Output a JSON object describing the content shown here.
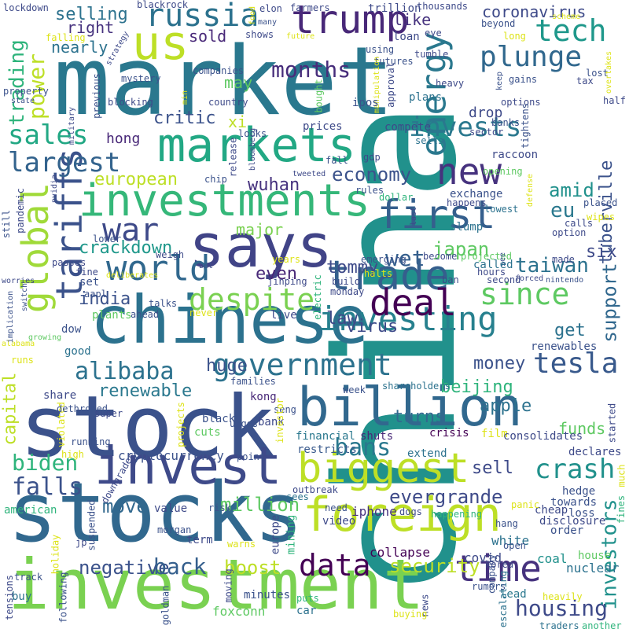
{
  "words": [
    {
      "text": "china",
      "color": "#21918c"
    },
    {
      "text": "market",
      "color": "#2a788e"
    },
    {
      "text": "stock",
      "color": "#3b528b"
    },
    {
      "text": "investment",
      "color": "#7ad151"
    },
    {
      "text": "stocks",
      "color": "#31688e"
    },
    {
      "text": "chinese",
      "color": "#2c728e"
    },
    {
      "text": "markets",
      "color": "#22a884"
    },
    {
      "text": "invest",
      "color": "#3e4a89"
    },
    {
      "text": "investments",
      "color": "#35b779"
    },
    {
      "text": "says",
      "color": "#414487"
    },
    {
      "text": "billion",
      "color": "#31688e"
    },
    {
      "text": "trump",
      "color": "#482878"
    },
    {
      "text": "us",
      "color": "#bddf26"
    },
    {
      "text": "foreign",
      "color": "#bddf26"
    },
    {
      "text": "biggest",
      "color": "#bddf26"
    },
    {
      "text": "global",
      "color": "#a0da39"
    },
    {
      "text": "trade",
      "color": "#355f8d"
    },
    {
      "text": "government",
      "color": "#2c728e"
    },
    {
      "text": "investing",
      "color": "#27808e"
    },
    {
      "text": "deal",
      "color": "#440154"
    },
    {
      "text": "time",
      "color": "#46327e"
    },
    {
      "text": "data",
      "color": "#440154"
    },
    {
      "text": "first",
      "color": "#355f8d"
    },
    {
      "text": "new",
      "color": "#46327e"
    },
    {
      "text": "energy",
      "color": "#2a788e"
    },
    {
      "text": "tariffs",
      "color": "#3b528b"
    },
    {
      "text": "world",
      "color": "#31688e"
    },
    {
      "text": "russia",
      "color": "#2c728e"
    },
    {
      "text": "plunge",
      "color": "#31688e"
    },
    {
      "text": "tech",
      "color": "#1f988b"
    },
    {
      "text": "despite",
      "color": "#7ad151"
    },
    {
      "text": "since",
      "color": "#5ec962"
    },
    {
      "text": "crash",
      "color": "#21918c"
    },
    {
      "text": "tesla",
      "color": "#38598c"
    },
    {
      "text": "housing",
      "color": "#3e4a89"
    },
    {
      "text": "alibaba",
      "color": "#2c728e"
    },
    {
      "text": "largest",
      "color": "#33638d"
    },
    {
      "text": "sales",
      "color": "#22a884"
    },
    {
      "text": "invests",
      "color": "#2a788e"
    },
    {
      "text": "coronavirus",
      "color": "#3e4a89"
    },
    {
      "text": "months",
      "color": "#472d7b"
    },
    {
      "text": "selling",
      "color": "#2c728e"
    },
    {
      "text": "power",
      "color": "#bddf26"
    },
    {
      "text": "trading",
      "color": "#2fb47c"
    },
    {
      "text": "war",
      "color": "#3e4a89"
    },
    {
      "text": "wet",
      "color": "#355f8d"
    },
    {
      "text": "economy",
      "color": "#3b528b"
    },
    {
      "text": "taiwan",
      "color": "#2c728e"
    },
    {
      "text": "bans",
      "color": "#2a788e"
    },
    {
      "text": "biden",
      "color": "#2fb47c"
    },
    {
      "text": "falls",
      "color": "#3b528b"
    },
    {
      "text": "evergrande",
      "color": "#3e4a89"
    },
    {
      "text": "security",
      "color": "#bddf26"
    },
    {
      "text": "negative",
      "color": "#3b528b"
    },
    {
      "text": "back",
      "color": "#355f8d"
    },
    {
      "text": "million",
      "color": "#5ec962"
    },
    {
      "text": "move",
      "color": "#31688e"
    },
    {
      "text": "boost",
      "color": "#bddf26"
    },
    {
      "text": "investors",
      "color": "#21918c"
    },
    {
      "text": "support",
      "color": "#31688e"
    },
    {
      "text": "european",
      "color": "#bddf26"
    },
    {
      "text": "amid",
      "color": "#21918c"
    },
    {
      "text": "eu",
      "color": "#2a788e"
    },
    {
      "text": "japan",
      "color": "#5ec962"
    },
    {
      "text": "six",
      "color": "#3e4a89"
    },
    {
      "text": "wuhan",
      "color": "#46327e"
    },
    {
      "text": "crackdown",
      "color": "#1f988b"
    },
    {
      "text": "tommy",
      "color": "#3e4a89"
    },
    {
      "text": "even",
      "color": "#482878"
    },
    {
      "text": "india",
      "color": "#3b528b"
    },
    {
      "text": "law",
      "color": "#3e4a89"
    },
    {
      "text": "virus",
      "color": "#3e4a89"
    },
    {
      "text": "beijing",
      "color": "#2fb47c"
    },
    {
      "text": "apple",
      "color": "#2c728e"
    },
    {
      "text": "funds",
      "color": "#5ec962"
    },
    {
      "text": "get",
      "color": "#2c728e"
    },
    {
      "text": "renewable",
      "color": "#2a788e"
    },
    {
      "text": "huge",
      "color": "#3b528b"
    },
    {
      "text": "money",
      "color": "#3b528b"
    },
    {
      "text": "turns",
      "color": "#31688e"
    },
    {
      "text": "sell",
      "color": "#3e4a89"
    },
    {
      "text": "critic",
      "color": "#3b528b"
    },
    {
      "text": "hong",
      "color": "#482878"
    },
    {
      "text": "xi",
      "color": "#bddf26"
    },
    {
      "text": "may",
      "color": "#5ec962"
    },
    {
      "text": "drop",
      "color": "#3e4a89"
    },
    {
      "text": "like",
      "color": "#46327e"
    },
    {
      "text": "right",
      "color": "#46327e"
    },
    {
      "text": "nearly",
      "color": "#2c728e"
    },
    {
      "text": "sold",
      "color": "#482878"
    },
    {
      "text": "major",
      "color": "#7ad151"
    },
    {
      "text": "cryptocurrency",
      "color": "#3b528b"
    },
    {
      "text": "capital",
      "color": "#bddf26"
    },
    {
      "text": "tuberville",
      "color": "#3b528b"
    },
    {
      "text": "american",
      "color": "#2fb47c"
    },
    {
      "text": "iphone",
      "color": "#46327e"
    },
    {
      "text": "covid",
      "color": "#3e4a89"
    },
    {
      "text": "collapse",
      "color": "#440154"
    },
    {
      "text": "coal",
      "color": "#21918c"
    },
    {
      "text": "nuclear",
      "color": "#2c728e"
    },
    {
      "text": "house",
      "color": "#5ec962"
    },
    {
      "text": "white",
      "color": "#2c728e"
    },
    {
      "text": "europe",
      "color": "#3e4a89"
    },
    {
      "text": "mining",
      "color": "#2fb47c"
    },
    {
      "text": "film",
      "color": "#dde318"
    },
    {
      "text": "crisis",
      "color": "#440154"
    },
    {
      "text": "shuts",
      "color": "#482878"
    },
    {
      "text": "extend",
      "color": "#2c728e"
    },
    {
      "text": "financial",
      "color": "#2a788e"
    },
    {
      "text": "restricts",
      "color": "#38598c"
    },
    {
      "text": "consolidates",
      "color": "#3e4a89"
    },
    {
      "text": "declares",
      "color": "#3e4a89"
    },
    {
      "text": "started",
      "color": "#3e4a89"
    },
    {
      "text": "hedge",
      "color": "#3b528b"
    },
    {
      "text": "towards",
      "color": "#3b528b"
    },
    {
      "text": "cheap",
      "color": "#3e4a89"
    },
    {
      "text": "loss",
      "color": "#3b528b"
    },
    {
      "text": "disclosure",
      "color": "#3e4a89"
    },
    {
      "text": "order",
      "color": "#3b528b"
    },
    {
      "text": "panic",
      "color": "#dde318"
    },
    {
      "text": "hang",
      "color": "#3b528b"
    },
    {
      "text": "open",
      "color": "#3b528b"
    },
    {
      "text": "much",
      "color": "#dde318"
    },
    {
      "text": "fines",
      "color": "#2fb47c"
    },
    {
      "text": "renewables",
      "color": "#3b528b"
    },
    {
      "text": "escalating",
      "color": "#2c728e"
    },
    {
      "text": "company",
      "color": "#3b528b"
    },
    {
      "text": "lead",
      "color": "#2a788e"
    },
    {
      "text": "heavily",
      "color": "#dde318"
    },
    {
      "text": "traders",
      "color": "#2c728e"
    },
    {
      "text": "another",
      "color": "#2fb47c"
    },
    {
      "text": "news",
      "color": "#3e4a89"
    },
    {
      "text": "buying",
      "color": "#dde318"
    },
    {
      "text": "puts",
      "color": "#2fb47c"
    },
    {
      "text": "car",
      "color": "#2c728e"
    },
    {
      "text": "minutes",
      "color": "#3b528b"
    },
    {
      "text": "foxconn",
      "color": "#5ec962"
    },
    {
      "text": "goldman",
      "color": "#3b528b"
    },
    {
      "text": "moving",
      "color": "#3e4a89"
    },
    {
      "text": "rumors",
      "color": "#3b528b"
    },
    {
      "text": "korea",
      "color": "#3e4a89"
    },
    {
      "text": "warns",
      "color": "#dde318"
    },
    {
      "text": "term",
      "color": "#3e4a89"
    },
    {
      "text": "morgan",
      "color": "#3b528b"
    },
    {
      "text": "value",
      "color": "#3e4a89"
    },
    {
      "text": "risk",
      "color": "#3b528b"
    },
    {
      "text": "sees",
      "color": "#2c728e"
    },
    {
      "text": "video",
      "color": "#3e4a89"
    },
    {
      "text": "need",
      "color": "#3b528b"
    },
    {
      "text": "dogs",
      "color": "#3e4a89"
    },
    {
      "text": "happening",
      "color": "#2fb47c"
    },
    {
      "text": "outbreak",
      "color": "#3e4a89"
    },
    {
      "text": "suspended",
      "color": "#3b528b"
    },
    {
      "text": "jp",
      "color": "#3e4a89"
    },
    {
      "text": "holiday",
      "color": "#dde318"
    },
    {
      "text": "track",
      "color": "#3b528b"
    },
    {
      "text": "buy",
      "color": "#2c728e"
    },
    {
      "text": "tensions",
      "color": "#3e4a89"
    },
    {
      "text": "following",
      "color": "#3b528b"
    },
    {
      "text": "high",
      "color": "#dde318"
    },
    {
      "text": "downgrades",
      "color": "#3e4a89"
    },
    {
      "text": "point",
      "color": "#3b528b"
    },
    {
      "text": "urges",
      "color": "#3b528b"
    },
    {
      "text": "cuts",
      "color": "#5ec962"
    },
    {
      "text": "black",
      "color": "#3b528b"
    },
    {
      "text": "bank",
      "color": "#3e4a89"
    },
    {
      "text": "seng",
      "color": "#3b528b"
    },
    {
      "text": "kong",
      "color": "#482878"
    },
    {
      "text": "projects",
      "color": "#dde318"
    },
    {
      "text": "running",
      "color": "#3b528b"
    },
    {
      "text": "violated",
      "color": "#dde318"
    },
    {
      "text": "super",
      "color": "#3e4a89"
    },
    {
      "text": "share",
      "color": "#3e4a89"
    },
    {
      "text": "dethroned",
      "color": "#3b528b"
    },
    {
      "text": "families",
      "color": "#3b528b"
    },
    {
      "text": "week",
      "color": "#3b528b"
    },
    {
      "text": "shareholders",
      "color": "#2c728e"
    },
    {
      "text": "investor",
      "color": "#dde318"
    },
    {
      "text": "runs",
      "color": "#dde318"
    },
    {
      "text": "alabama",
      "color": "#dde318"
    },
    {
      "text": "good",
      "color": "#2c728e"
    },
    {
      "text": "growing",
      "color": "#5ec962"
    },
    {
      "text": "dow",
      "color": "#3b528b"
    },
    {
      "text": "plants",
      "color": "#5ec962"
    },
    {
      "text": "ahead",
      "color": "#3b528b"
    },
    {
      "text": "never",
      "color": "#dde318"
    },
    {
      "text": "live",
      "color": "#3e4a89"
    },
    {
      "text": "aapl",
      "color": "#3b528b"
    },
    {
      "text": "talks",
      "color": "#3b528b"
    },
    {
      "text": "jinping",
      "color": "#3e4a89"
    },
    {
      "text": "implication",
      "color": "#3b528b"
    },
    {
      "text": "switch",
      "color": "#3b528b"
    },
    {
      "text": "passes",
      "color": "#3e4a89"
    },
    {
      "text": "fine",
      "color": "#3e4a89"
    },
    {
      "text": "set",
      "color": "#3b528b"
    },
    {
      "text": "deliberates",
      "color": "#dde318"
    },
    {
      "text": "years",
      "color": "#dde318"
    },
    {
      "text": "electric",
      "color": "#2fb47c"
    },
    {
      "text": "build",
      "color": "#3e4a89"
    },
    {
      "text": "monday",
      "color": "#3e4a89"
    },
    {
      "text": "halts",
      "color": "#dde318"
    },
    {
      "text": "worries",
      "color": "#3e4a89"
    },
    {
      "text": "still",
      "color": "#3b528b"
    },
    {
      "text": "pandemic",
      "color": "#3e4a89"
    },
    {
      "text": "nvidia",
      "color": "#3e4a89"
    },
    {
      "text": "chip",
      "color": "#3b528b"
    },
    {
      "text": "lower",
      "color": "#3b528b"
    },
    {
      "text": "bet",
      "color": "#3e4a89"
    },
    {
      "text": "weigh",
      "color": "#3e4a89"
    },
    {
      "text": "military",
      "color": "#3e4a89"
    },
    {
      "text": "state",
      "color": "#3b528b"
    },
    {
      "text": "property",
      "color": "#3b528b"
    },
    {
      "text": "previous",
      "color": "#3b528b"
    },
    {
      "text": "blocking",
      "color": "#3e4a89"
    },
    {
      "text": "mystery",
      "color": "#3b528b"
    },
    {
      "text": "strategy",
      "color": "#3e4a89"
    },
    {
      "text": "min",
      "color": "#dde318"
    },
    {
      "text": "country",
      "color": "#3e4a89"
    },
    {
      "text": "companies",
      "color": "#3b528b"
    },
    {
      "text": "shows",
      "color": "#3e4a89"
    },
    {
      "text": "future",
      "color": "#dde318"
    },
    {
      "text": "futures",
      "color": "#3b528b"
    },
    {
      "text": "loan",
      "color": "#3e4a89"
    },
    {
      "text": "using",
      "color": "#3b528b"
    },
    {
      "text": "elon",
      "color": "#3e4a89"
    },
    {
      "text": "food",
      "color": "#dde318"
    },
    {
      "text": "many",
      "color": "#3b528b"
    },
    {
      "text": "farmers",
      "color": "#3e4a89"
    },
    {
      "text": "trillion",
      "color": "#3e4a89"
    },
    {
      "text": "thousands",
      "color": "#3e4a89"
    },
    {
      "text": "eye",
      "color": "#3e4a89"
    },
    {
      "text": "tumble",
      "color": "#3e4a89"
    },
    {
      "text": "scheme",
      "color": "#dde318"
    },
    {
      "text": "beyond",
      "color": "#3b528b"
    },
    {
      "text": "long",
      "color": "#dde318"
    },
    {
      "text": "gains",
      "color": "#3b528b"
    },
    {
      "text": "tax",
      "color": "#3e4a89"
    },
    {
      "text": "lost",
      "color": "#3b528b"
    },
    {
      "text": "overtakes",
      "color": "#dde318"
    },
    {
      "text": "half",
      "color": "#3e4a89"
    },
    {
      "text": "options",
      "color": "#3e4a89"
    },
    {
      "text": "keep",
      "color": "#3b528b"
    },
    {
      "text": "heavy",
      "color": "#3e4a89"
    },
    {
      "text": "plans",
      "color": "#2c728e"
    },
    {
      "text": "approval",
      "color": "#3e4a89"
    },
    {
      "text": "manipulation",
      "color": "#dde318"
    },
    {
      "text": "ipos",
      "color": "#3b528b"
    },
    {
      "text": "bought",
      "color": "#5ec962"
    },
    {
      "text": "bloomberg",
      "color": "#3e4a89"
    },
    {
      "text": "release",
      "color": "#3e4a89"
    },
    {
      "text": "looks",
      "color": "#3b528b"
    },
    {
      "text": "tweeted",
      "color": "#3e4a89"
    },
    {
      "text": "fall",
      "color": "#3b528b"
    },
    {
      "text": "gdp",
      "color": "#3e4a89"
    },
    {
      "text": "sells",
      "color": "#2c728e"
    },
    {
      "text": "compete",
      "color": "#3e4a89"
    },
    {
      "text": "prices",
      "color": "#3e4a89"
    },
    {
      "text": "sector",
      "color": "#3e4a89"
    },
    {
      "text": "banks",
      "color": "#3b528b"
    },
    {
      "text": "tightens",
      "color": "#3b528b"
    },
    {
      "text": "raccoon",
      "color": "#3e4a89"
    },
    {
      "text": "opening",
      "color": "#5ec962"
    },
    {
      "text": "defense",
      "color": "#dde318"
    },
    {
      "text": "placed",
      "color": "#3b528b"
    },
    {
      "text": "wipes",
      "color": "#dde318"
    },
    {
      "text": "option",
      "color": "#3e4a89"
    },
    {
      "text": "calls",
      "color": "#3e4a89"
    },
    {
      "text": "lowest",
      "color": "#2c728e"
    },
    {
      "text": "exchange",
      "color": "#3b528b"
    },
    {
      "text": "happens",
      "color": "#3e4a89"
    },
    {
      "text": "dollar",
      "color": "#2fb47c"
    },
    {
      "text": "rules",
      "color": "#3b528b"
    },
    {
      "text": "last",
      "color": "#3e4a89"
    },
    {
      "text": "slump",
      "color": "#2c728e"
    },
    {
      "text": "become",
      "color": "#3e4a89"
    },
    {
      "text": "projected",
      "color": "#5ec962"
    },
    {
      "text": "see",
      "color": "#3b528b"
    },
    {
      "text": "made",
      "color": "#3e4a89"
    },
    {
      "text": "forced",
      "color": "#3e4a89"
    },
    {
      "text": "nintendo",
      "color": "#3b528b"
    },
    {
      "text": "called",
      "color": "#2c728e"
    },
    {
      "text": "ban",
      "color": "#3e4a89"
    },
    {
      "text": "hours",
      "color": "#3e4a89"
    },
    {
      "text": "second",
      "color": "#3e4a89"
    },
    {
      "text": "emerging",
      "color": "#3b528b"
    },
    {
      "text": "lockdown",
      "color": "#3e4a89"
    },
    {
      "text": "falling",
      "color": "#dde318"
    },
    {
      "text": "blackrock",
      "color": "#3e4a89"
    }
  ]
}
